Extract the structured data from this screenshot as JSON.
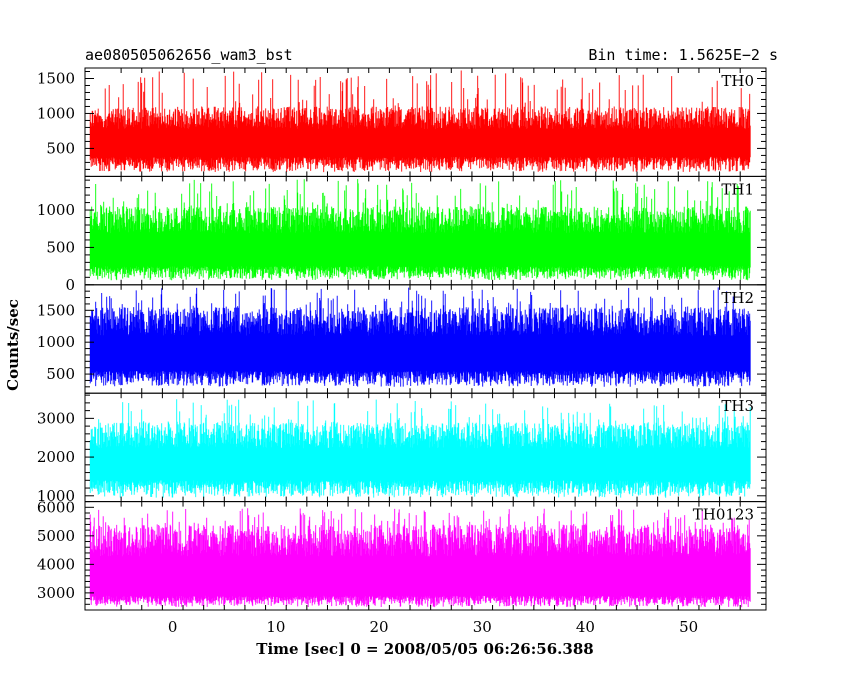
{
  "chart_data": {
    "type": "line",
    "title_left": "ae080505062656_wam3_bst",
    "title_right": "Bin time: 1.5625E−2 s",
    "xlabel": "Time [sec] 0 = 2008/05/05 06:26:56.388",
    "ylabel": "Counts/sec",
    "xlim": [
      -8.5,
      57.5
    ],
    "xticks": [
      0,
      10,
      20,
      30,
      40,
      50
    ],
    "data_xrange": [
      -8,
      56
    ],
    "panels": [
      {
        "name": "TH0",
        "color": "#ff0000",
        "ylim": [
          100,
          1650
        ],
        "yticks": [
          500,
          1000,
          1500
        ],
        "baseline": 160,
        "typical_low": 380,
        "typical_high": 1100,
        "peak": 1620
      },
      {
        "name": "TH1",
        "color": "#00ff00",
        "ylim": [
          0,
          1450
        ],
        "yticks": [
          0,
          500,
          1000
        ],
        "baseline": 60,
        "typical_low": 250,
        "typical_high": 1050,
        "peak": 1420
      },
      {
        "name": "TH2",
        "color": "#0000ff",
        "ylim": [
          200,
          1900
        ],
        "yticks": [
          500,
          1000,
          1500
        ],
        "baseline": 300,
        "typical_low": 550,
        "typical_high": 1550,
        "peak": 1880
      },
      {
        "name": "TH3",
        "color": "#00ffff",
        "ylim": [
          850,
          3650
        ],
        "yticks": [
          1000,
          2000,
          3000
        ],
        "baseline": 950,
        "typical_low": 1400,
        "typical_high": 2900,
        "peak": 3500
      },
      {
        "name": "TH0123",
        "color": "#ff00ff",
        "ylim": [
          2400,
          6200
        ],
        "yticks": [
          3000,
          4000,
          5000,
          6000
        ],
        "baseline": 2500,
        "typical_low": 2900,
        "typical_high": 5400,
        "peak": 6000
      }
    ]
  }
}
